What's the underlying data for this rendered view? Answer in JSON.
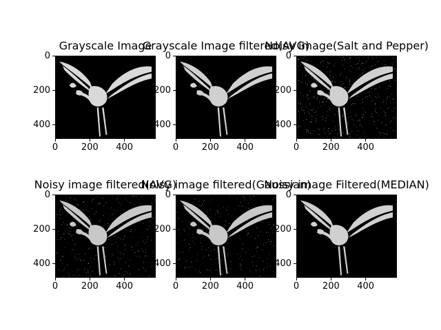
{
  "chart_data": [
    {
      "type": "image",
      "title": "Grayscale Image",
      "xticks": [
        0,
        200,
        400
      ],
      "yticks": [
        0,
        200,
        400
      ],
      "xlim": [
        0,
        580
      ],
      "ylim": [
        480,
        0
      ],
      "noise": 0,
      "colors": {
        "bird": "#d9d9d9",
        "bg": "#000000"
      }
    },
    {
      "type": "image",
      "title": "Grayscale Image filtered(AVG)",
      "xticks": [
        0,
        200,
        400
      ],
      "yticks": [
        0,
        200,
        400
      ],
      "xlim": [
        0,
        580
      ],
      "ylim": [
        480,
        0
      ],
      "noise": 0,
      "colors": {
        "bird": "#d0d0d0",
        "bg": "#000000"
      }
    },
    {
      "type": "image",
      "title": "Noisy image(Salt and Pepper)",
      "xticks": [
        0,
        200,
        400
      ],
      "yticks": [
        0,
        200,
        400
      ],
      "xlim": [
        0,
        580
      ],
      "ylim": [
        480,
        0
      ],
      "noise": 0.22,
      "colors": {
        "bird": "#d0d0d0",
        "bg": "#000000"
      }
    },
    {
      "type": "image",
      "title": "Noisy image filtered(AVG)",
      "xticks": [
        0,
        200,
        400
      ],
      "yticks": [
        0,
        200,
        400
      ],
      "xlim": [
        0,
        580
      ],
      "ylim": [
        480,
        0
      ],
      "noise": 0.14,
      "colors": {
        "bird": "#c8c8c8",
        "bg": "#000000"
      }
    },
    {
      "type": "image",
      "title": "Noisy image filtered(Gaussian)",
      "xticks": [
        0,
        200,
        400
      ],
      "yticks": [
        0,
        200,
        400
      ],
      "xlim": [
        0,
        580
      ],
      "ylim": [
        480,
        0
      ],
      "noise": 0.12,
      "colors": {
        "bird": "#c8c8c8",
        "bg": "#000000"
      }
    },
    {
      "type": "image",
      "title": "Noisy image Filtered(MEDIAN)",
      "xticks": [
        0,
        200,
        400
      ],
      "yticks": [
        0,
        200,
        400
      ],
      "xlim": [
        0,
        580
      ],
      "ylim": [
        480,
        0
      ],
      "noise": 0,
      "colors": {
        "bird": "#d0d0d0",
        "bg": "#000000"
      }
    }
  ]
}
